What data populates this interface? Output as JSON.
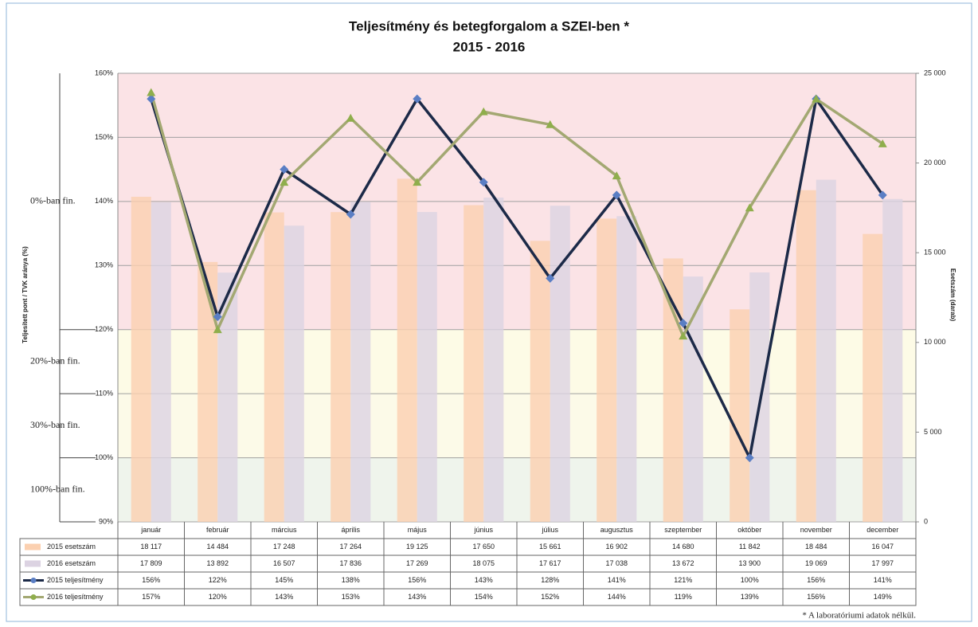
{
  "chart_data": {
    "type": "bar",
    "title": "Teljesítmény és betegforgalom a SZEI-ben *",
    "subtitle": "2015 - 2016",
    "y_label": "Teljesített pont / TVK aránya (%)",
    "y2_label": "Esetszám (darab)",
    "footnote": "* A laboratóriumi adatok nélkül.",
    "categories": [
      "január",
      "február",
      "március",
      "április",
      "május",
      "június",
      "július",
      "augusztus",
      "szeptember",
      "október",
      "november",
      "december"
    ],
    "ylim": [
      90,
      160
    ],
    "yticks": [
      {
        "value": 90,
        "label": "90%"
      },
      {
        "value": 100,
        "label": "100%"
      },
      {
        "value": 110,
        "label": "110%"
      },
      {
        "value": 120,
        "label": "120%"
      },
      {
        "value": 130,
        "label": "130%"
      },
      {
        "value": 140,
        "label": "140%"
      },
      {
        "value": 150,
        "label": "150%"
      },
      {
        "value": 160,
        "label": "160%"
      }
    ],
    "y2lim": [
      0,
      25000
    ],
    "y2ticks": [
      0,
      {
        "value": 5000,
        "label": "5 000"
      },
      {
        "value": 10000,
        "label": "10 000"
      },
      {
        "value": 15000,
        "label": "15 000"
      },
      {
        "value": 20000,
        "label": "20 000"
      },
      {
        "value": 25000,
        "label": "25 000"
      }
    ],
    "grid": true,
    "zones": [
      {
        "label": "0%-ban fin.",
        "from": 120,
        "to": 160,
        "color": "#fbe3e6"
      },
      {
        "label": "20%-ban fin.",
        "from": 110,
        "to": 120,
        "color": "#fdfbe6"
      },
      {
        "label": "30%-ban fin.",
        "from": 100,
        "to": 110,
        "color": "#fcfae8"
      },
      {
        "label": "100%-ban fin.",
        "from": 90,
        "to": 100,
        "color": "#eff4ec"
      }
    ],
    "series": [
      {
        "name": "2015 esetszám",
        "type": "bar",
        "axis": "y2",
        "color": "#fbd0b0",
        "values": [
          18117,
          14484,
          17248,
          17264,
          19125,
          17650,
          15661,
          16902,
          14680,
          11842,
          18484,
          16047
        ],
        "value_labels": [
          "18 117",
          "14 484",
          "17 248",
          "17 264",
          "19 125",
          "17 650",
          "15 661",
          "16 902",
          "14 680",
          "11 842",
          "18 484",
          "16 047"
        ]
      },
      {
        "name": "2016 esetszám",
        "type": "bar",
        "axis": "y2",
        "color": "#dcd3e2",
        "values": [
          17809,
          13892,
          16507,
          17836,
          17269,
          18075,
          17617,
          17038,
          13672,
          13900,
          19069,
          17997
        ],
        "value_labels": [
          "17 809",
          "13 892",
          "16 507",
          "17 836",
          "17 269",
          "18 075",
          "17 617",
          "17 038",
          "13 672",
          "13 900",
          "19 069",
          "17 997"
        ]
      },
      {
        "name": "2015 teljesítmény",
        "type": "line",
        "color": "#1c2a48",
        "marker_color": "#5a7ec4",
        "values": [
          156,
          122,
          145,
          138,
          156,
          143,
          128,
          141,
          121,
          100,
          156,
          141
        ],
        "value_labels": [
          "156%",
          "122%",
          "145%",
          "138%",
          "156%",
          "143%",
          "128%",
          "141%",
          "121%",
          "100%",
          "156%",
          "141%"
        ]
      },
      {
        "name": "2016 teljesítmény",
        "type": "line",
        "color": "#a3a872",
        "marker_color": "#8fae4c",
        "values": [
          157,
          120,
          143,
          153,
          143,
          154,
          152,
          144,
          119,
          139,
          156,
          149
        ],
        "value_labels": [
          "157%",
          "120%",
          "143%",
          "153%",
          "143%",
          "154%",
          "152%",
          "144%",
          "119%",
          "139%",
          "156%",
          "149%"
        ]
      }
    ]
  }
}
